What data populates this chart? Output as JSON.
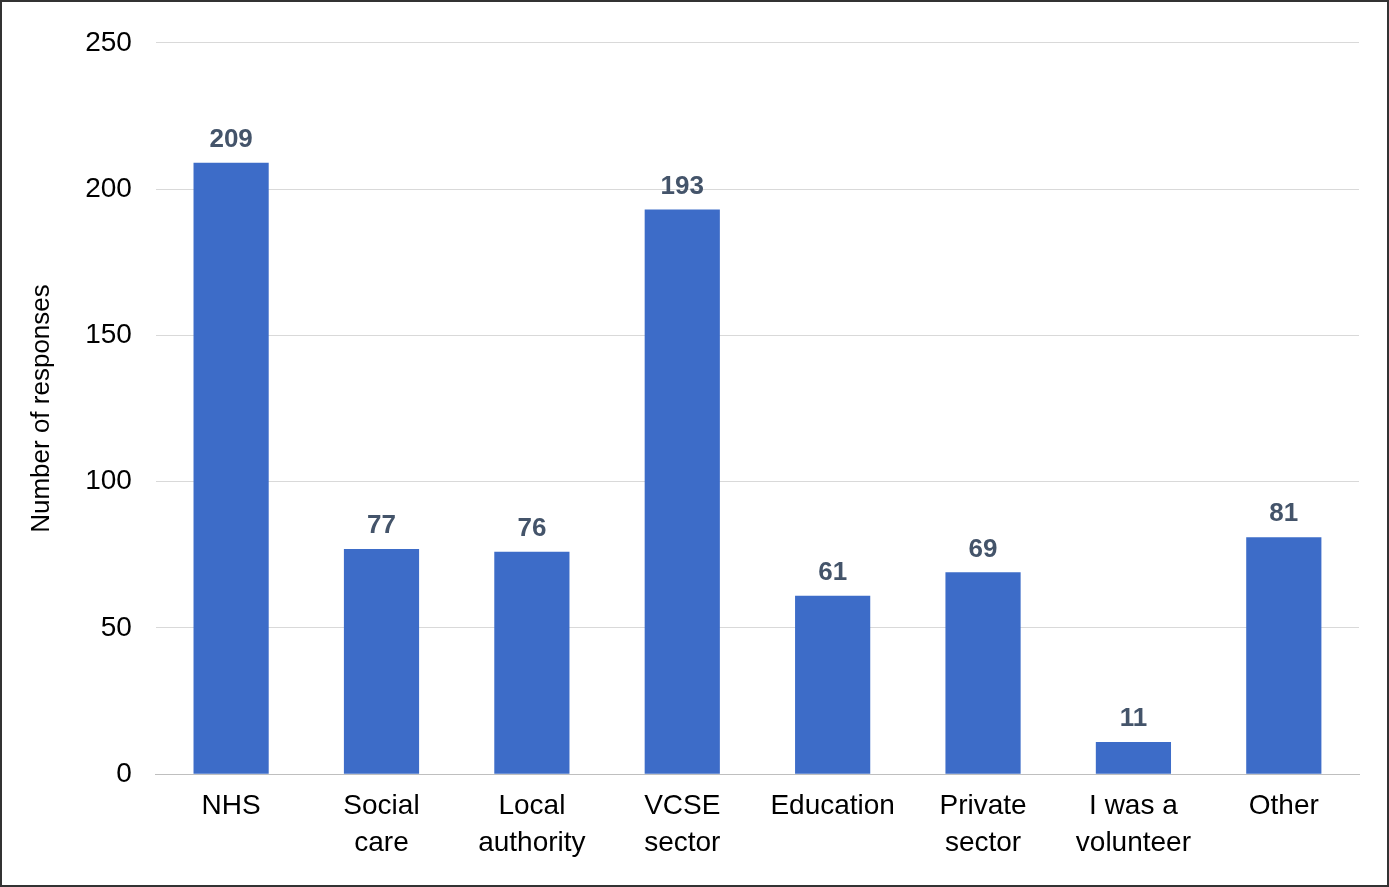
{
  "chart_data": {
    "type": "bar",
    "ylabel": "Number of responses",
    "categories": [
      "NHS",
      "Social care",
      "Local authority",
      "VCSE sector",
      "Education",
      "Private sector",
      "I was a volunteer",
      "Other"
    ],
    "values": [
      209,
      77,
      76,
      193,
      61,
      69,
      11,
      81
    ],
    "color": "#3d6cc8",
    "ylim": [
      0,
      250
    ],
    "yticks": [
      0,
      50,
      100,
      150,
      200,
      250
    ],
    "grid": "y",
    "legend": false,
    "data_labels": true
  }
}
